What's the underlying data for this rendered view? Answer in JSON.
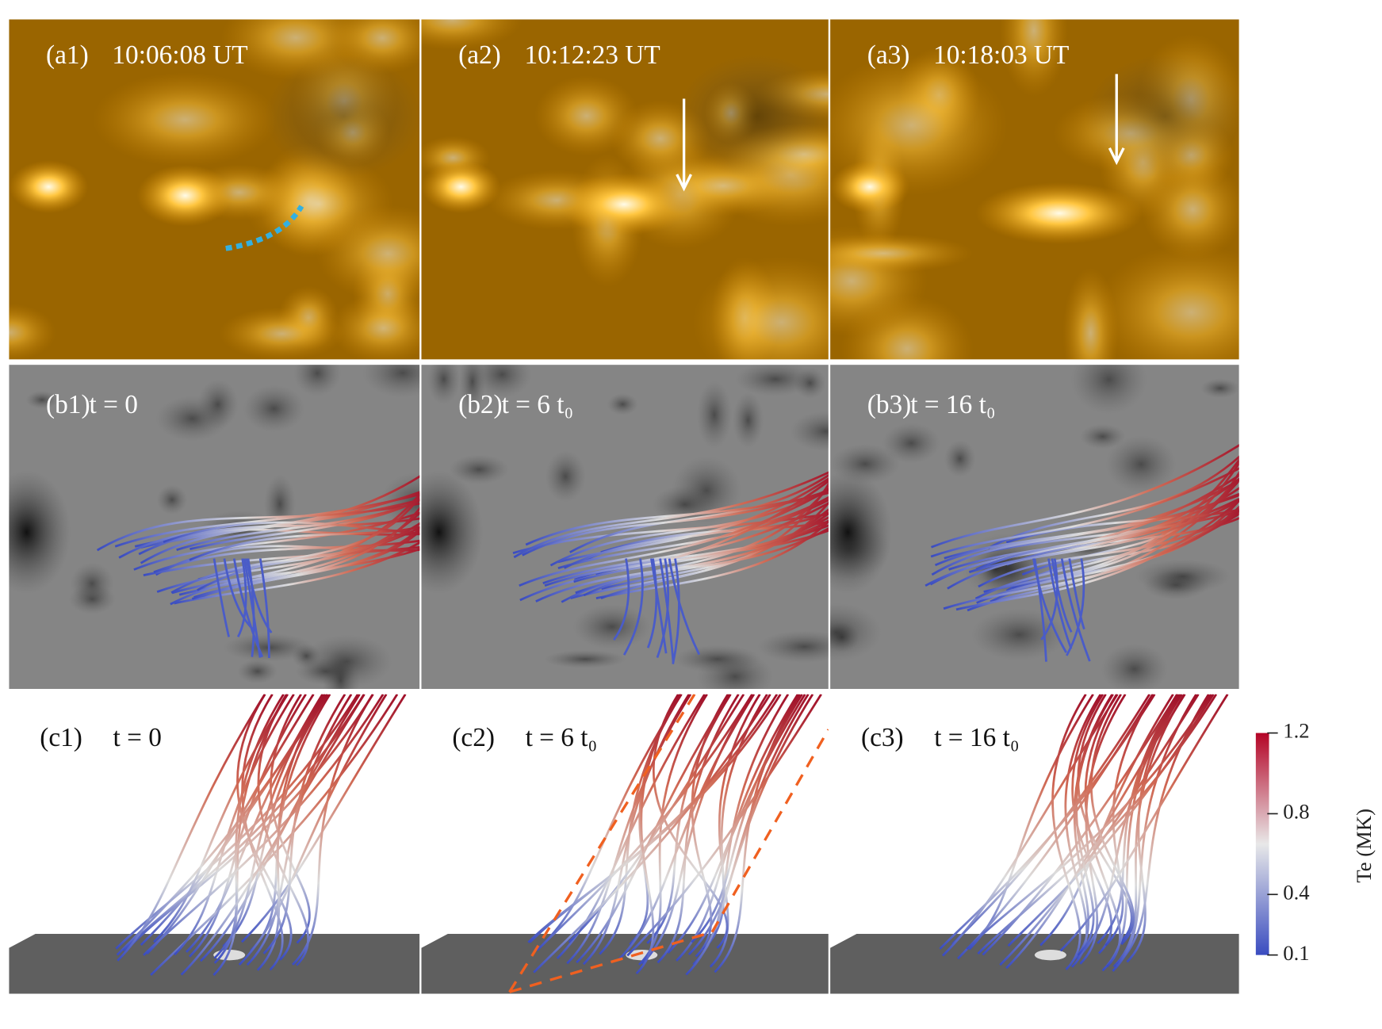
{
  "panels": [
    {
      "label": "(a1)",
      "time": "10:06:08 UT"
    },
    {
      "label": "(a2)",
      "time": "10:12:23 UT"
    },
    {
      "label": "(a3)",
      "time": "10:18:03 UT"
    },
    {
      "label": "(b1)",
      "time": "t = 0"
    },
    {
      "label": "(b2)",
      "time": "t = 6 t₀"
    },
    {
      "label": "(b3)",
      "time": "t = 16 t₀"
    },
    {
      "label": "(c1)",
      "time": "t = 0"
    },
    {
      "label": "(c2)",
      "time": "t = 6 t₀"
    },
    {
      "label": "(c3)",
      "time": "t = 16 t₀"
    }
  ],
  "colorbar": {
    "label": "Te (MK)",
    "lim": [
      0.1,
      1.2
    ],
    "ticks": [
      0.1,
      0.4,
      0.8,
      1.2
    ]
  }
}
